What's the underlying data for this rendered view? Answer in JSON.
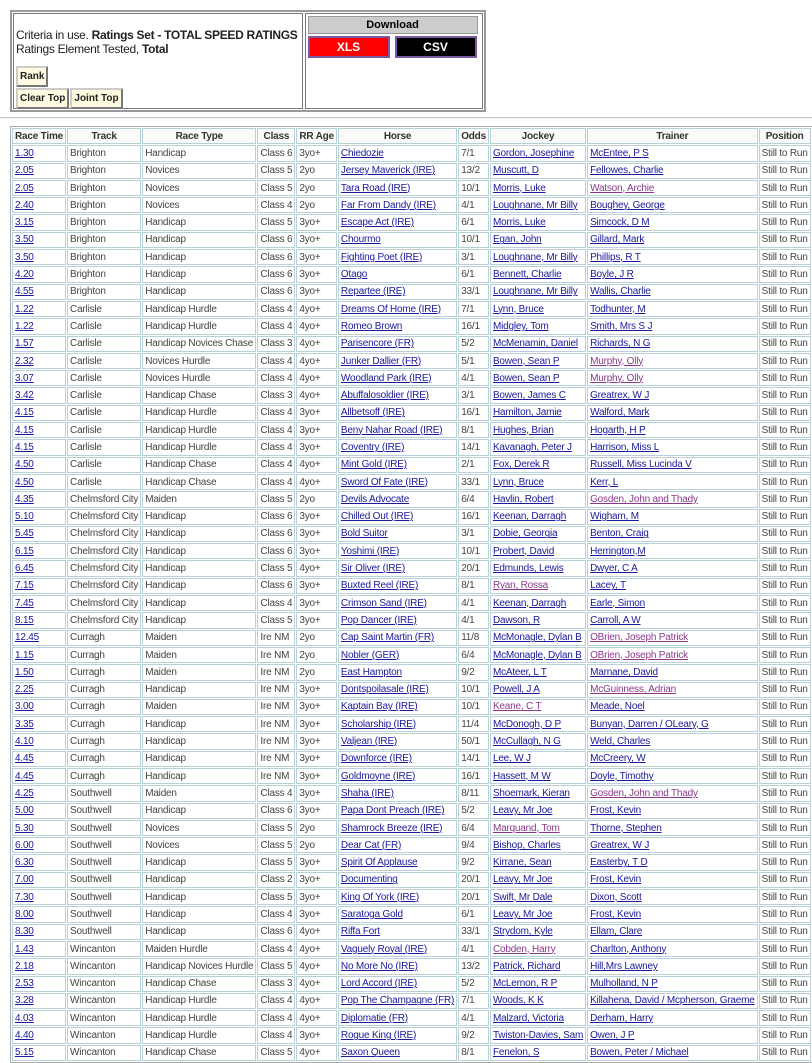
{
  "criteria": {
    "prefix": "Criteria in use. ",
    "ratings_set": "Ratings Set - TOTAL SPEED RATINGS",
    "element_prefix": "Ratings Element Tested, ",
    "element": "Total"
  },
  "buttons": {
    "rank": "Rank",
    "clear_top": "Clear Top",
    "joint_top": "Joint Top"
  },
  "download": {
    "title": "Download",
    "xls": "XLS",
    "csv": "CSV",
    "xls_color": "#ff0000",
    "csv_color": "#000000"
  },
  "table": {
    "headers": [
      "Race Time",
      "Track",
      "Race Type",
      "Class",
      "RR Age",
      "Horse",
      "Odds",
      "Jockey",
      "Trainer",
      "Position"
    ],
    "rows": [
      [
        "1.30",
        "Brighton",
        "Handicap",
        "Class 6",
        "3yo+",
        "Chiedozie",
        "7/1",
        "Gordon, Josephine",
        "McEntee, P S",
        "Still to Run"
      ],
      [
        "2.05",
        "Brighton",
        "Novices",
        "Class 5",
        "2yo",
        "Jersey Maverick (IRE)",
        "13/2",
        "Muscutt, D",
        "Fellowes, Charlie",
        "Still to Run"
      ],
      [
        "2.05",
        "Brighton",
        "Novices",
        "Class 5",
        "2yo",
        "Tara Road (IRE)",
        "10/1",
        "Morris, Luke",
        "Watson, Archie",
        "Still to Run"
      ],
      [
        "2.40",
        "Brighton",
        "Novices",
        "Class 4",
        "2yo",
        "Far From Dandy (IRE)",
        "4/1",
        "Loughnane, Mr Billy",
        "Boughey, George",
        "Still to Run"
      ],
      [
        "3.15",
        "Brighton",
        "Handicap",
        "Class 5",
        "3yo+",
        "Escape Act (IRE)",
        "6/1",
        "Morris, Luke",
        "Simcock, D M",
        "Still to Run"
      ],
      [
        "3.50",
        "Brighton",
        "Handicap",
        "Class 6",
        "3yo+",
        "Chourmo",
        "10/1",
        "Egan, John",
        "Gillard, Mark",
        "Still to Run"
      ],
      [
        "3.50",
        "Brighton",
        "Handicap",
        "Class 6",
        "3yo+",
        "Fighting Poet (IRE)",
        "3/1",
        "Loughnane, Mr Billy",
        "Phillips, R T",
        "Still to Run"
      ],
      [
        "4.20",
        "Brighton",
        "Handicap",
        "Class 6",
        "3yo+",
        "Otago",
        "6/1",
        "Bennett, Charlie",
        "Boyle, J R",
        "Still to Run"
      ],
      [
        "4.55",
        "Brighton",
        "Handicap",
        "Class 6",
        "3yo+",
        "Repartee (IRE)",
        "33/1",
        "Loughnane, Mr Billy",
        "Wallis, Charlie",
        "Still to Run"
      ],
      [
        "1.22",
        "Carlisle",
        "Handicap Hurdle",
        "Class 4",
        "4yo+",
        "Dreams Of Home (IRE)",
        "7/1",
        "Lynn, Bruce",
        "Todhunter, M",
        "Still to Run"
      ],
      [
        "1.22",
        "Carlisle",
        "Handicap Hurdle",
        "Class 4",
        "4yo+",
        "Romeo Brown",
        "16/1",
        "Midgley, Tom",
        "Smith, Mrs S J",
        "Still to Run"
      ],
      [
        "1.57",
        "Carlisle",
        "Handicap Novices Chase",
        "Class 3",
        "4yo+",
        "Parisencore (FR)",
        "5/2",
        "McMenamin, Daniel",
        "Richards, N G",
        "Still to Run"
      ],
      [
        "2.32",
        "Carlisle",
        "Novices Hurdle",
        "Class 4",
        "4yo+",
        "Junker Dallier (FR)",
        "5/1",
        "Bowen, Sean P",
        "Murphy, Olly",
        "Still to Run"
      ],
      [
        "3.07",
        "Carlisle",
        "Novices Hurdle",
        "Class 4",
        "4yo+",
        "Woodland Park (IRE)",
        "4/1",
        "Bowen, Sean P",
        "Murphy, Olly",
        "Still to Run"
      ],
      [
        "3.42",
        "Carlisle",
        "Handicap Chase",
        "Class 3",
        "4yo+",
        "Abuffalosoldier (IRE)",
        "3/1",
        "Bowen, James C",
        "Greatrex, W J",
        "Still to Run"
      ],
      [
        "4.15",
        "Carlisle",
        "Handicap Hurdle",
        "Class 4",
        "3yo+",
        "Allbetsoff (IRE)",
        "16/1",
        "Hamilton, Jamie",
        "Walford, Mark",
        "Still to Run"
      ],
      [
        "4.15",
        "Carlisle",
        "Handicap Hurdle",
        "Class 4",
        "3yo+",
        "Beny Nahar Road (IRE)",
        "8/1",
        "Hughes, Brian",
        "Hogarth, H P",
        "Still to Run"
      ],
      [
        "4.15",
        "Carlisle",
        "Handicap Hurdle",
        "Class 4",
        "3yo+",
        "Coventry (IRE)",
        "14/1",
        "Kavanagh, Peter J",
        "Harrison, Miss L",
        "Still to Run"
      ],
      [
        "4.50",
        "Carlisle",
        "Handicap Chase",
        "Class 4",
        "4yo+",
        "Mint Gold (IRE)",
        "2/1",
        "Fox, Derek R",
        "Russell, Miss Lucinda V",
        "Still to Run"
      ],
      [
        "4.50",
        "Carlisle",
        "Handicap Chase",
        "Class 4",
        "4yo+",
        "Sword Of Fate (IRE)",
        "33/1",
        "Lynn, Bruce",
        "Kerr, L",
        "Still to Run"
      ],
      [
        "4.35",
        "Chelmsford City",
        "Maiden",
        "Class 5",
        "2yo",
        "Devils Advocate",
        "6/4",
        "Havlin, Robert",
        "Gosden, John and Thady",
        "Still to Run"
      ],
      [
        "5.10",
        "Chelmsford City",
        "Handicap",
        "Class 6",
        "3yo+",
        "Chilled Out (IRE)",
        "16/1",
        "Keenan, Darragh",
        "Wigham, M",
        "Still to Run"
      ],
      [
        "5.45",
        "Chelmsford City",
        "Handicap",
        "Class 6",
        "3yo+",
        "Bold Suitor",
        "3/1",
        "Dobie, Georgia",
        "Benton, Craig",
        "Still to Run"
      ],
      [
        "6.15",
        "Chelmsford City",
        "Handicap",
        "Class 6",
        "3yo+",
        "Yoshimi (IRE)",
        "10/1",
        "Probert, David",
        "Herrington,M",
        "Still to Run"
      ],
      [
        "6.45",
        "Chelmsford City",
        "Handicap",
        "Class 5",
        "4yo+",
        "Sir Oliver (IRE)",
        "20/1",
        "Edmunds, Lewis",
        "Dwyer, C A",
        "Still to Run"
      ],
      [
        "7.15",
        "Chelmsford City",
        "Handicap",
        "Class 6",
        "3yo+",
        "Buxted Reel (IRE)",
        "8/1",
        "Ryan, Rossa",
        "Lacey, T",
        "Still to Run"
      ],
      [
        "7.45",
        "Chelmsford City",
        "Handicap",
        "Class 4",
        "3yo+",
        "Crimson Sand (IRE)",
        "4/1",
        "Keenan, Darragh",
        "Earle, Simon",
        "Still to Run"
      ],
      [
        "8.15",
        "Chelmsford City",
        "Handicap",
        "Class 5",
        "3yo+",
        "Pop Dancer (IRE)",
        "4/1",
        "Dawson, R",
        "Carroll, A W",
        "Still to Run"
      ],
      [
        "12.45",
        "Curragh",
        "Maiden",
        "Ire NM",
        "2yo",
        "Cap Saint Martin (FR)",
        "11/8",
        "McMonagle, Dylan B",
        "OBrien, Joseph Patrick",
        "Still to Run"
      ],
      [
        "1.15",
        "Curragh",
        "Maiden",
        "Ire NM",
        "2yo",
        "Nobler (GER)",
        "6/4",
        "McMonagle, Dylan B",
        "OBrien, Joseph Patrick",
        "Still to Run"
      ],
      [
        "1.50",
        "Curragh",
        "Maiden",
        "Ire NM",
        "2yo",
        "East Hampton",
        "9/2",
        "McAteer, L T",
        "Marnane, David",
        "Still to Run"
      ],
      [
        "2.25",
        "Curragh",
        "Handicap",
        "Ire NM",
        "3yo+",
        "Dontspoilasale (IRE)",
        "10/1",
        "Powell, J A",
        "McGuinness, Adrian",
        "Still to Run"
      ],
      [
        "3.00",
        "Curragh",
        "Maiden",
        "Ire NM",
        "3yo+",
        "Kaptain Bay (IRE)",
        "10/1",
        "Keane, C T",
        "Meade, Noel",
        "Still to Run"
      ],
      [
        "3.35",
        "Curragh",
        "Handicap",
        "Ire NM",
        "3yo+",
        "Scholarship (IRE)",
        "11/4",
        "McDonogh, D P",
        "Bunyan, Darren / OLeary, G",
        "Still to Run"
      ],
      [
        "4.10",
        "Curragh",
        "Handicap",
        "Ire NM",
        "3yo+",
        "Valjean (IRE)",
        "50/1",
        "McCullagh, N G",
        "Weld, Charles",
        "Still to Run"
      ],
      [
        "4.45",
        "Curragh",
        "Handicap",
        "Ire NM",
        "3yo+",
        "Downforce (IRE)",
        "14/1",
        "Lee, W J",
        "McCreery, W",
        "Still to Run"
      ],
      [
        "4.45",
        "Curragh",
        "Handicap",
        "Ire NM",
        "3yo+",
        "Goldmoyne (IRE)",
        "16/1",
        "Hassett, M W",
        "Doyle, Timothy",
        "Still to Run"
      ],
      [
        "4.25",
        "Southwell",
        "Maiden",
        "Class 4",
        "3yo+",
        "Shaha (IRE)",
        "8/11",
        "Shoemark, Kieran",
        "Gosden, John and Thady",
        "Still to Run"
      ],
      [
        "5.00",
        "Southwell",
        "Handicap",
        "Class 6",
        "3yo+",
        "Papa Dont Preach (IRE)",
        "5/2",
        "Leavy, Mr Joe",
        "Frost, Kevin",
        "Still to Run"
      ],
      [
        "5.30",
        "Southwell",
        "Novices",
        "Class 5",
        "2yo",
        "Shamrock Breeze (IRE)",
        "6/4",
        "Marquand, Tom",
        "Thorne, Stephen",
        "Still to Run"
      ],
      [
        "6.00",
        "Southwell",
        "Novices",
        "Class 5",
        "2yo",
        "Dear Cat (FR)",
        "9/4",
        "Bishop, Charles",
        "Greatrex, W J",
        "Still to Run"
      ],
      [
        "6.30",
        "Southwell",
        "Handicap",
        "Class 5",
        "3yo+",
        "Spirit Of Applause",
        "9/2",
        "Kirrane, Sean",
        "Easterby, T D",
        "Still to Run"
      ],
      [
        "7.00",
        "Southwell",
        "Handicap",
        "Class 2",
        "3yo+",
        "Documenting",
        "20/1",
        "Leavy, Mr Joe",
        "Frost, Kevin",
        "Still to Run"
      ],
      [
        "7.30",
        "Southwell",
        "Handicap",
        "Class 5",
        "3yo+",
        "King Of York (IRE)",
        "20/1",
        "Swift, Mr Dale",
        "Dixon, Scott",
        "Still to Run"
      ],
      [
        "8.00",
        "Southwell",
        "Handicap",
        "Class 4",
        "3yo+",
        "Saratoga Gold",
        "6/1",
        "Leavy, Mr Joe",
        "Frost, Kevin",
        "Still to Run"
      ],
      [
        "8.30",
        "Southwell",
        "Handicap",
        "Class 6",
        "4yo+",
        "Riffa Fort",
        "33/1",
        "Strydom, Kyle",
        "Ellam, Clare",
        "Still to Run"
      ],
      [
        "1.43",
        "Wincanton",
        "Maiden Hurdle",
        "Class 4",
        "4yo+",
        "Vaguely Royal (IRE)",
        "4/1",
        "Cobden, Harry",
        "Charlton, Anthony",
        "Still to Run"
      ],
      [
        "2.18",
        "Wincanton",
        "Handicap Novices Hurdle",
        "Class 5",
        "4yo+",
        "No More No (IRE)",
        "13/2",
        "Patrick, Richard",
        "Hill,Mrs Lawney",
        "Still to Run"
      ],
      [
        "2.53",
        "Wincanton",
        "Handicap Chase",
        "Class 3",
        "4yo+",
        "Lord Accord (IRE)",
        "5/2",
        "McLernon, R P",
        "Mulholland, N P",
        "Still to Run"
      ],
      [
        "3.28",
        "Wincanton",
        "Handicap Hurdle",
        "Class 4",
        "4yo+",
        "Pop The Champagne (FR)",
        "7/1",
        "Woods, K K",
        "Killahena, David / Mcpherson, Graeme",
        "Still to Run"
      ],
      [
        "4.03",
        "Wincanton",
        "Handicap Hurdle",
        "Class 4",
        "4yo+",
        "Diplomatie (FR)",
        "4/1",
        "Malzard, Victoria",
        "Derham, Harry",
        "Still to Run"
      ],
      [
        "4.40",
        "Wincanton",
        "Handicap Hurdle",
        "Class 4",
        "3yo+",
        "Rogue King (IRE)",
        "9/2",
        "Twiston-Davies, Sam",
        "Owen, J P",
        "Still to Run"
      ],
      [
        "5.15",
        "Wincanton",
        "Handicap Chase",
        "Class 5",
        "4yo+",
        "Saxon Queen",
        "8/1",
        "Fenelon, S",
        "Bowen, Peter / Michael",
        "Still to Run"
      ]
    ],
    "visited_jockey_rows": [
      25,
      32,
      39,
      46
    ],
    "visited_trainer_rows": [
      2,
      12,
      13,
      20,
      28,
      29,
      31,
      37
    ],
    "link_color": "#1a1a9a",
    "visited_color": "#8b3a8b"
  }
}
